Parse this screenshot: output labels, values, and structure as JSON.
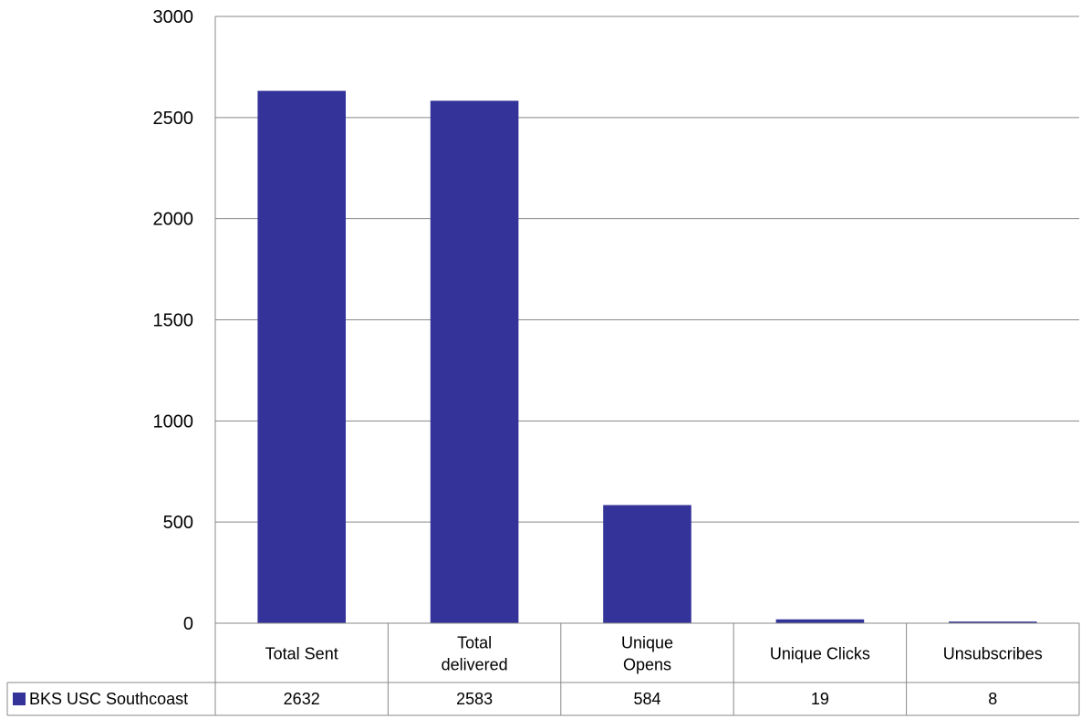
{
  "chart_data": {
    "type": "bar",
    "title": "",
    "xlabel": "",
    "ylabel": "",
    "ylim": [
      0,
      3000
    ],
    "yticks": [
      0,
      500,
      1000,
      1500,
      2000,
      2500,
      3000
    ],
    "ytick_labels": [
      "0",
      "500",
      "1000",
      "1500",
      "2000",
      "2500",
      "3000"
    ],
    "grid": true,
    "legend": "in data table, left of values row",
    "data_table": true,
    "categories": [
      [
        "Total Sent"
      ],
      [
        "Total",
        "delivered"
      ],
      [
        "Unique",
        "Opens"
      ],
      [
        "Unique Clicks"
      ],
      [
        "Unsubscribes"
      ]
    ],
    "series": [
      {
        "name": "BKS USC Southcoast",
        "color": "#333399",
        "values": [
          2632,
          2583,
          584,
          19,
          8
        ],
        "value_labels": [
          "2632",
          "2583",
          "584",
          "19",
          "8"
        ]
      }
    ]
  }
}
